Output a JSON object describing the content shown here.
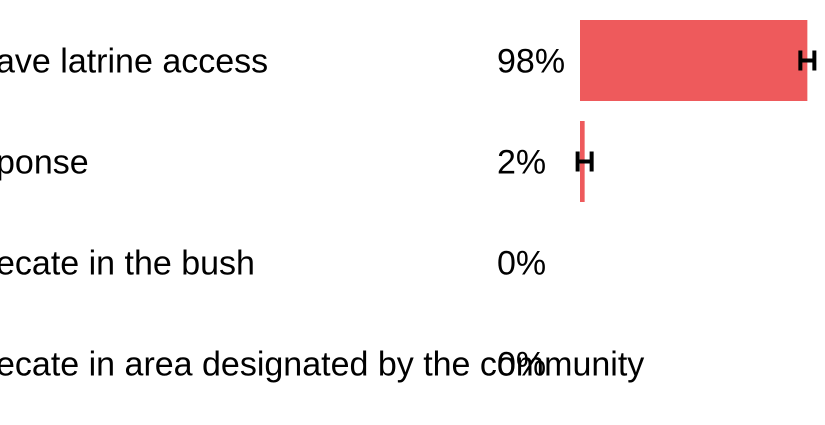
{
  "chart_data": {
    "type": "bar",
    "orientation": "horizontal",
    "categories": [
      "ave latrine access",
      "ponse",
      "ecate in the bush",
      "ecate in area designated by the community"
    ],
    "values": [
      98,
      2,
      0,
      0
    ],
    "value_labels": [
      "98%",
      "2%",
      "0%",
      "0%"
    ],
    "error_bars": [
      true,
      true,
      false,
      false
    ],
    "xlim": [
      0,
      100
    ],
    "bar_color": "#ee5a5c",
    "error_bar_color": "#000000",
    "grid": false,
    "legend": "none"
  }
}
